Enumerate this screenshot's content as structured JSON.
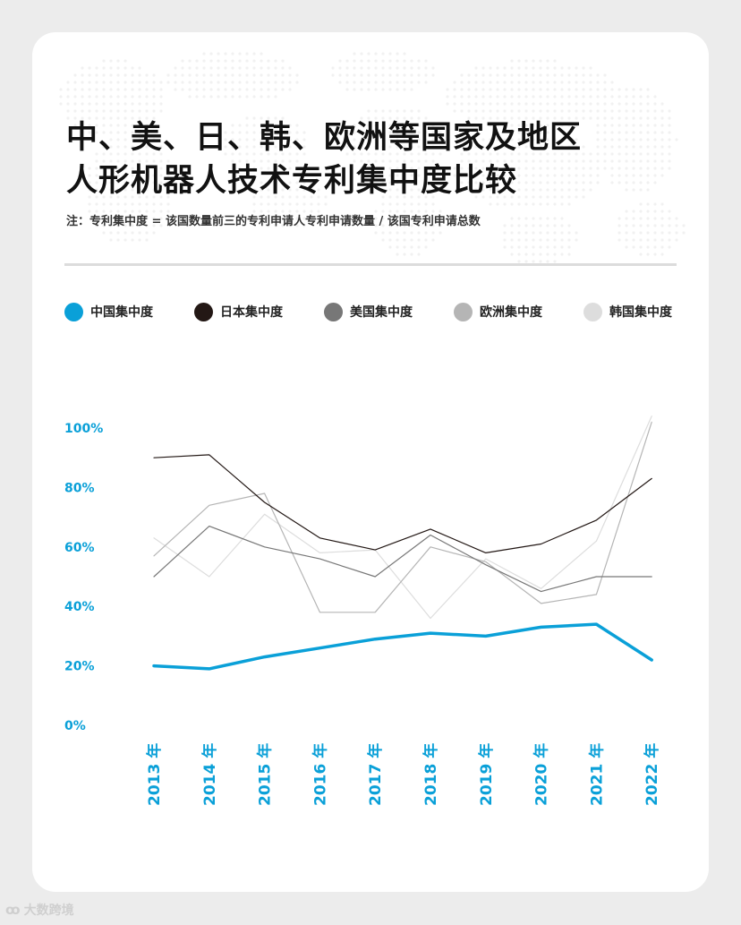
{
  "header": {
    "title_line1": "中、美、日、韩、欧洲等国家及地区",
    "title_line2": "人形机器人技术专利集中度比较",
    "note": "注：专利集中度 = 该国数量前三的专利申请人专利申请数量 / 该国专利申请总数"
  },
  "colors": {
    "china": "#0aa0d8",
    "japan": "#231815",
    "usa": "#777777",
    "europe": "#b5b5b5",
    "korea": "#dddddd",
    "axis_text": "#0aa0d8"
  },
  "legend": [
    {
      "label": "中国集中度",
      "color": "#0aa0d8"
    },
    {
      "label": "日本集中度",
      "color": "#231815"
    },
    {
      "label": "美国集中度",
      "color": "#777777"
    },
    {
      "label": "欧洲集中度",
      "color": "#b5b5b5"
    },
    {
      "label": "韩国集中度",
      "color": "#dddddd"
    }
  ],
  "watermark": {
    "icon": "logo-icon",
    "symbol": "ꝏ",
    "text": "大数跨境"
  },
  "chart_data": {
    "type": "line",
    "title": "中、美、日、韩、欧洲等国家及地区人形机器人技术专利集中度比较",
    "categories": [
      "2013 年",
      "2014 年",
      "2015 年",
      "2016 年",
      "2017 年",
      "2018 年",
      "2019 年",
      "2020 年",
      "2021 年",
      "2022 年"
    ],
    "ylim": [
      0,
      100
    ],
    "yticks": [
      "0%",
      "20%",
      "40%",
      "60%",
      "80%",
      "100%"
    ],
    "grid": false,
    "legend_position": "top",
    "series": [
      {
        "name": "中国集中度",
        "color": "#0aa0d8",
        "width": 3.5,
        "values": [
          20,
          19,
          23,
          26,
          29,
          31,
          30,
          33,
          34,
          22
        ]
      },
      {
        "name": "日本集中度",
        "color": "#231815",
        "width": 1.2,
        "values": [
          90,
          91,
          75,
          63,
          59,
          66,
          58,
          61,
          69,
          83
        ]
      },
      {
        "name": "美国集中度",
        "color": "#777777",
        "width": 1.2,
        "values": [
          50,
          67,
          60,
          56,
          50,
          64,
          54,
          45,
          50,
          50
        ]
      },
      {
        "name": "欧洲集中度",
        "color": "#b5b5b5",
        "width": 1.2,
        "values": [
          57,
          74,
          78,
          38,
          38,
          60,
          55,
          41,
          44,
          102
        ]
      },
      {
        "name": "韩国集中度",
        "color": "#dddddd",
        "width": 1.2,
        "values": [
          63,
          50,
          71,
          58,
          59,
          36,
          56,
          46,
          62,
          104
        ]
      }
    ]
  }
}
